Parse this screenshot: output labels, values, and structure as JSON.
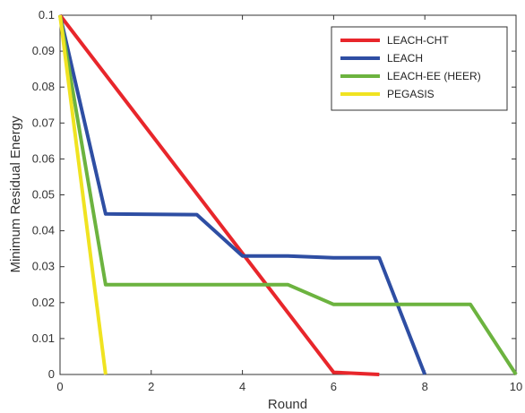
{
  "chart_data": {
    "type": "line",
    "xlabel": "Round",
    "ylabel": "Minimum Residual Energy",
    "xlim": [
      0,
      10
    ],
    "ylim": [
      0,
      0.1
    ],
    "xticks": [
      "0",
      "2",
      "4",
      "6",
      "8",
      "10"
    ],
    "yticks": [
      "0",
      "0.01",
      "0.02",
      "0.03",
      "0.04",
      "0.05",
      "0.06",
      "0.07",
      "0.08",
      "0.09",
      "0.1"
    ],
    "grid": false,
    "legend_position": "top-right",
    "series": [
      {
        "name": "LEACH-CHT",
        "color": "#e8262b",
        "x": [
          0,
          6,
          7
        ],
        "y": [
          0.1,
          0.0006,
          0
        ]
      },
      {
        "name": "LEACH",
        "color": "#2e4ea3",
        "x": [
          0,
          1,
          3,
          4,
          5,
          6,
          7,
          8
        ],
        "y": [
          0.1,
          0.0447,
          0.0445,
          0.033,
          0.033,
          0.0325,
          0.0325,
          0
        ]
      },
      {
        "name": "LEACH-EE (HEER)",
        "color": "#6cb33f",
        "x": [
          0,
          1,
          5,
          6,
          9,
          10
        ],
        "y": [
          0.1,
          0.025,
          0.025,
          0.0195,
          0.0195,
          0
        ]
      },
      {
        "name": "PEGASIS",
        "color": "#f0e321",
        "x": [
          0,
          1
        ],
        "y": [
          0.1,
          0
        ]
      }
    ]
  }
}
